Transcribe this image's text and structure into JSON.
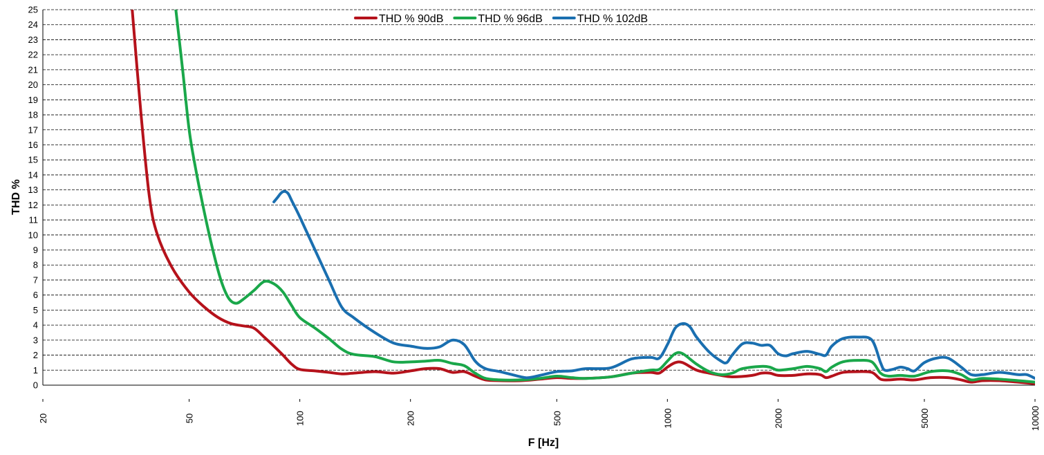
{
  "chart_data": {
    "type": "line",
    "xlabel": "F [Hz]",
    "ylabel": "THD %",
    "x_scale": "log",
    "xlim": [
      20,
      10000
    ],
    "ylim": [
      0,
      25
    ],
    "x_ticks": [
      20,
      50,
      100,
      200,
      500,
      1000,
      2000,
      5000,
      10000
    ],
    "x_tick_labels": [
      "20",
      "50",
      "100",
      "200",
      "500",
      "1000",
      "2000",
      "5000",
      "10000"
    ],
    "y_ticks": [
      0,
      1,
      2,
      3,
      4,
      5,
      6,
      7,
      8,
      9,
      10,
      11,
      12,
      13,
      14,
      15,
      16,
      17,
      18,
      19,
      20,
      21,
      22,
      23,
      24,
      25
    ],
    "grid": {
      "horizontal": true,
      "style": "dashed"
    },
    "legend_position": "top-center",
    "series": [
      {
        "name": "THD % 90dB",
        "color": "#b5121b",
        "points": [
          [
            35,
            25
          ],
          [
            37,
            18
          ],
          [
            39,
            12.5
          ],
          [
            41,
            10
          ],
          [
            45,
            7.8
          ],
          [
            50,
            6.2
          ],
          [
            55,
            5.2
          ],
          [
            60,
            4.5
          ],
          [
            65,
            4.1
          ],
          [
            70,
            3.95
          ],
          [
            75,
            3.8
          ],
          [
            80,
            3.2
          ],
          [
            85,
            2.6
          ],
          [
            90,
            2.0
          ],
          [
            95,
            1.4
          ],
          [
            100,
            1.05
          ],
          [
            110,
            0.95
          ],
          [
            120,
            0.85
          ],
          [
            130,
            0.75
          ],
          [
            140,
            0.8
          ],
          [
            160,
            0.9
          ],
          [
            180,
            0.8
          ],
          [
            200,
            0.95
          ],
          [
            220,
            1.1
          ],
          [
            240,
            1.1
          ],
          [
            260,
            0.85
          ],
          [
            280,
            0.9
          ],
          [
            300,
            0.6
          ],
          [
            320,
            0.35
          ],
          [
            350,
            0.3
          ],
          [
            400,
            0.3
          ],
          [
            450,
            0.4
          ],
          [
            500,
            0.5
          ],
          [
            550,
            0.45
          ],
          [
            600,
            0.45
          ],
          [
            700,
            0.55
          ],
          [
            800,
            0.8
          ],
          [
            900,
            0.85
          ],
          [
            950,
            0.8
          ],
          [
            1000,
            1.2
          ],
          [
            1050,
            1.5
          ],
          [
            1100,
            1.5
          ],
          [
            1200,
            1.0
          ],
          [
            1300,
            0.8
          ],
          [
            1400,
            0.65
          ],
          [
            1500,
            0.55
          ],
          [
            1700,
            0.65
          ],
          [
            1800,
            0.8
          ],
          [
            1900,
            0.8
          ],
          [
            2000,
            0.65
          ],
          [
            2200,
            0.65
          ],
          [
            2400,
            0.75
          ],
          [
            2600,
            0.7
          ],
          [
            2700,
            0.5
          ],
          [
            2800,
            0.6
          ],
          [
            3000,
            0.85
          ],
          [
            3300,
            0.9
          ],
          [
            3600,
            0.85
          ],
          [
            3800,
            0.4
          ],
          [
            4000,
            0.35
          ],
          [
            4300,
            0.4
          ],
          [
            4700,
            0.35
          ],
          [
            5200,
            0.5
          ],
          [
            5800,
            0.5
          ],
          [
            6300,
            0.35
          ],
          [
            6700,
            0.2
          ],
          [
            7200,
            0.3
          ],
          [
            8000,
            0.3
          ],
          [
            9000,
            0.2
          ],
          [
            10000,
            0.1
          ]
        ]
      },
      {
        "name": "THD % 96dB",
        "color": "#1aa74a",
        "points": [
          [
            46,
            25
          ],
          [
            48,
            21
          ],
          [
            50,
            17
          ],
          [
            52,
            14.5
          ],
          [
            55,
            11.5
          ],
          [
            58,
            9.0
          ],
          [
            61,
            7.0
          ],
          [
            64,
            5.8
          ],
          [
            67,
            5.45
          ],
          [
            70,
            5.7
          ],
          [
            75,
            6.3
          ],
          [
            80,
            6.9
          ],
          [
            85,
            6.75
          ],
          [
            90,
            6.2
          ],
          [
            95,
            5.3
          ],
          [
            100,
            4.5
          ],
          [
            110,
            3.8
          ],
          [
            120,
            3.1
          ],
          [
            130,
            2.4
          ],
          [
            140,
            2.05
          ],
          [
            160,
            1.9
          ],
          [
            180,
            1.55
          ],
          [
            200,
            1.55
          ],
          [
            220,
            1.6
          ],
          [
            240,
            1.65
          ],
          [
            260,
            1.45
          ],
          [
            280,
            1.3
          ],
          [
            300,
            0.8
          ],
          [
            320,
            0.45
          ],
          [
            350,
            0.35
          ],
          [
            400,
            0.35
          ],
          [
            450,
            0.45
          ],
          [
            500,
            0.6
          ],
          [
            550,
            0.5
          ],
          [
            600,
            0.45
          ],
          [
            700,
            0.55
          ],
          [
            800,
            0.8
          ],
          [
            900,
            1.0
          ],
          [
            950,
            1.05
          ],
          [
            1000,
            1.6
          ],
          [
            1050,
            2.1
          ],
          [
            1100,
            2.1
          ],
          [
            1200,
            1.4
          ],
          [
            1300,
            0.9
          ],
          [
            1400,
            0.7
          ],
          [
            1500,
            0.8
          ],
          [
            1600,
            1.1
          ],
          [
            1800,
            1.25
          ],
          [
            1900,
            1.2
          ],
          [
            2000,
            1.0
          ],
          [
            2200,
            1.1
          ],
          [
            2400,
            1.25
          ],
          [
            2600,
            1.1
          ],
          [
            2700,
            0.9
          ],
          [
            2800,
            1.2
          ],
          [
            3000,
            1.55
          ],
          [
            3300,
            1.65
          ],
          [
            3600,
            1.55
          ],
          [
            3800,
            0.8
          ],
          [
            4000,
            0.6
          ],
          [
            4300,
            0.65
          ],
          [
            4700,
            0.6
          ],
          [
            5200,
            0.9
          ],
          [
            5800,
            0.95
          ],
          [
            6300,
            0.7
          ],
          [
            6700,
            0.35
          ],
          [
            7200,
            0.45
          ],
          [
            8000,
            0.4
          ],
          [
            9000,
            0.3
          ],
          [
            10000,
            0.2
          ]
        ]
      },
      {
        "name": "THD % 102dB",
        "color": "#1a6fb0",
        "points": [
          [
            85,
            12.2
          ],
          [
            87,
            12.5
          ],
          [
            89,
            12.8
          ],
          [
            91,
            12.9
          ],
          [
            93,
            12.75
          ],
          [
            95,
            12.3
          ],
          [
            100,
            11.2
          ],
          [
            110,
            9.0
          ],
          [
            120,
            7.0
          ],
          [
            130,
            5.2
          ],
          [
            140,
            4.5
          ],
          [
            160,
            3.5
          ],
          [
            180,
            2.8
          ],
          [
            200,
            2.6
          ],
          [
            220,
            2.45
          ],
          [
            240,
            2.55
          ],
          [
            260,
            3.0
          ],
          [
            280,
            2.7
          ],
          [
            300,
            1.6
          ],
          [
            320,
            1.1
          ],
          [
            350,
            0.9
          ],
          [
            400,
            0.55
          ],
          [
            420,
            0.5
          ],
          [
            450,
            0.65
          ],
          [
            500,
            0.9
          ],
          [
            550,
            0.95
          ],
          [
            600,
            1.1
          ],
          [
            700,
            1.15
          ],
          [
            800,
            1.75
          ],
          [
            900,
            1.85
          ],
          [
            950,
            1.8
          ],
          [
            1000,
            2.7
          ],
          [
            1050,
            3.8
          ],
          [
            1100,
            4.1
          ],
          [
            1150,
            3.9
          ],
          [
            1200,
            3.2
          ],
          [
            1300,
            2.2
          ],
          [
            1400,
            1.6
          ],
          [
            1450,
            1.5
          ],
          [
            1500,
            2.0
          ],
          [
            1600,
            2.75
          ],
          [
            1700,
            2.8
          ],
          [
            1800,
            2.65
          ],
          [
            1900,
            2.65
          ],
          [
            2000,
            2.1
          ],
          [
            2100,
            1.95
          ],
          [
            2200,
            2.1
          ],
          [
            2400,
            2.25
          ],
          [
            2600,
            2.05
          ],
          [
            2700,
            2.0
          ],
          [
            2800,
            2.6
          ],
          [
            3000,
            3.1
          ],
          [
            3300,
            3.2
          ],
          [
            3600,
            3.0
          ],
          [
            3800,
            1.5
          ],
          [
            3900,
            1.0
          ],
          [
            4100,
            1.05
          ],
          [
            4300,
            1.2
          ],
          [
            4500,
            1.1
          ],
          [
            4700,
            0.95
          ],
          [
            5000,
            1.5
          ],
          [
            5400,
            1.8
          ],
          [
            5800,
            1.8
          ],
          [
            6300,
            1.2
          ],
          [
            6700,
            0.7
          ],
          [
            7200,
            0.7
          ],
          [
            8000,
            0.85
          ],
          [
            9000,
            0.7
          ],
          [
            9500,
            0.7
          ],
          [
            10000,
            0.45
          ]
        ]
      }
    ]
  }
}
